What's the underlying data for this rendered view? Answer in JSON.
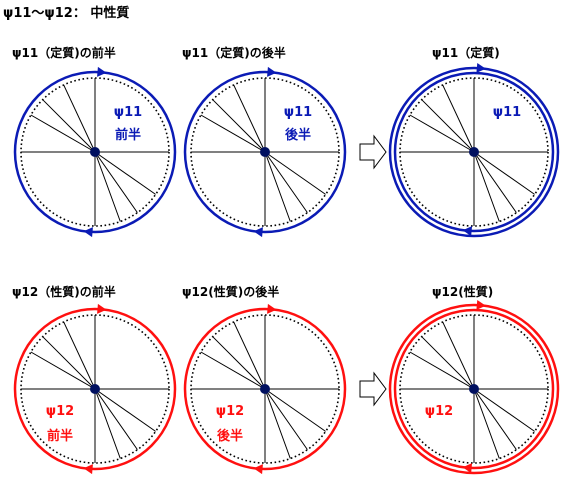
{
  "page_title": "ψ11～ψ12： 中性質",
  "colors": {
    "blue": "#0b1bb5",
    "red": "#ff1010",
    "dot": "#001060",
    "line": "#000000"
  },
  "rows": [
    {
      "color": "blue",
      "panels": [
        {
          "caption": "ψ11（定質)の前半",
          "label_psi": "ψ11",
          "label_part": "前半",
          "arc": "first_half"
        },
        {
          "caption": "ψ11（定質)の後半",
          "label_psi": "ψ11",
          "label_part": "後半",
          "arc": "second_half"
        },
        {
          "caption": "ψ11（定質)",
          "label_psi": "ψ11",
          "label_part": "",
          "arc": "full"
        }
      ]
    },
    {
      "color": "red",
      "panels": [
        {
          "caption": "ψ12（性質)の前半",
          "label_psi": "ψ12",
          "label_part": "前半",
          "arc": "first_half"
        },
        {
          "caption": "ψ12(性質)の後半",
          "label_psi": "ψ12",
          "label_part": "後半",
          "arc": "second_half"
        },
        {
          "caption": "ψ12(性質)",
          "label_psi": "ψ12",
          "label_part": "",
          "arc": "full"
        }
      ]
    }
  ],
  "transition_icon": "hollow-right-arrow-icon"
}
